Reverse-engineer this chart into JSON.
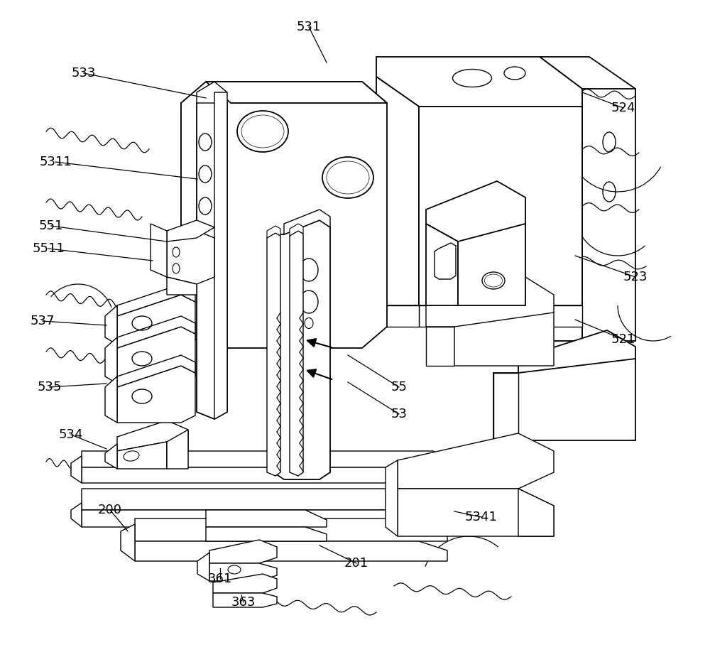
{
  "bg_color": "#ffffff",
  "lc": "#000000",
  "lw": 1.0,
  "lw2": 1.3,
  "fig_width": 10.0,
  "fig_height": 9.25,
  "dpi": 100,
  "labels": [
    [
      435,
      38,
      "531"
    ],
    [
      118,
      103,
      "533"
    ],
    [
      78,
      228,
      "5311"
    ],
    [
      72,
      318,
      "551"
    ],
    [
      68,
      350,
      "5511"
    ],
    [
      60,
      452,
      "537"
    ],
    [
      70,
      545,
      "535"
    ],
    [
      100,
      612,
      "534"
    ],
    [
      155,
      718,
      "200"
    ],
    [
      310,
      815,
      "361"
    ],
    [
      343,
      848,
      "363"
    ],
    [
      502,
      793,
      "201"
    ],
    [
      678,
      728,
      "5341"
    ],
    [
      562,
      583,
      "53"
    ],
    [
      562,
      545,
      "55"
    ],
    [
      878,
      478,
      "521"
    ],
    [
      895,
      390,
      "523"
    ],
    [
      878,
      152,
      "524"
    ]
  ]
}
